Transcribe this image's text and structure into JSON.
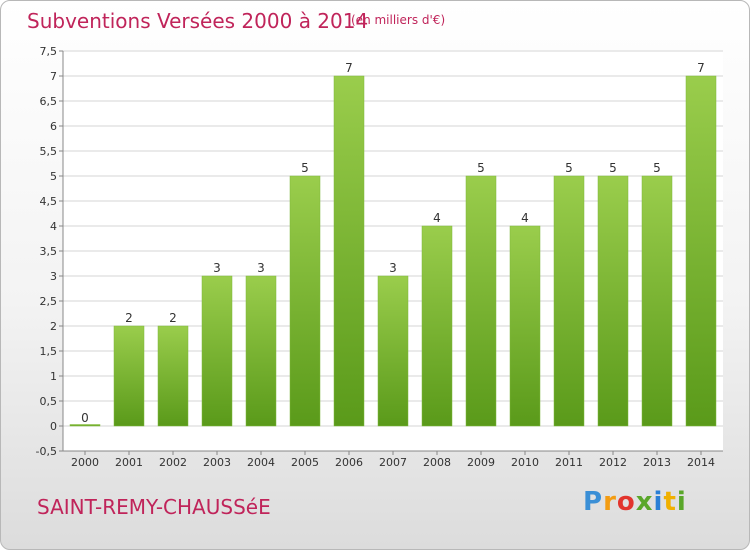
{
  "header": {
    "title": "Subventions Versées 2000 à 2014",
    "subtitle": "(en milliers d'€)"
  },
  "footer": {
    "place": "SAINT-REMY-CHAUSSéE",
    "logo": "Proxiti"
  },
  "colors": {
    "accent": "#c0245a",
    "bar_top": "#9acd4c",
    "bar_bottom": "#5a9a1a"
  },
  "chart_data": {
    "type": "bar",
    "title": "Subventions Versées 2000 à 2014",
    "subtitle": "(en milliers d'€)",
    "categories": [
      "2000",
      "2001",
      "2002",
      "2003",
      "2004",
      "2005",
      "2006",
      "2007",
      "2008",
      "2009",
      "2010",
      "2011",
      "2012",
      "2013",
      "2014"
    ],
    "values": [
      0,
      2,
      2,
      3,
      3,
      5,
      7,
      3,
      4,
      5,
      4,
      5,
      5,
      5,
      7
    ],
    "ylim": [
      -0.5,
      7.5
    ],
    "yticks": [
      "-0,5",
      "0",
      "0,5",
      "1",
      "1,5",
      "2",
      "2,5",
      "3",
      "3,5",
      "4",
      "4,5",
      "5",
      "5,5",
      "6",
      "6,5",
      "7",
      "7,5"
    ],
    "grid": true
  }
}
